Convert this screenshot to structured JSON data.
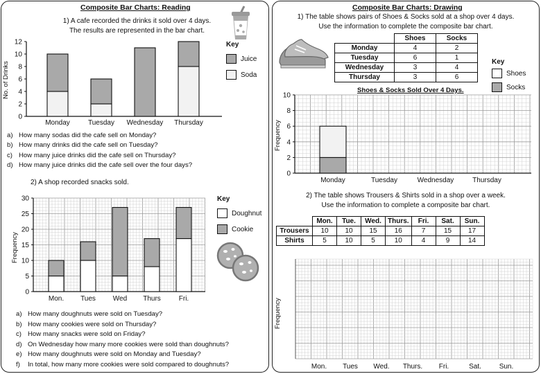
{
  "left": {
    "title": "Composite Bar Charts: Reading",
    "q1": {
      "intro_line1": "1)  A cafe recorded the drinks it sold over 4 days.",
      "intro_line2": "The results are represented in the bar chart.",
      "key_title": "Key",
      "key_items": [
        {
          "label": "Juice",
          "color": "#a9a9a9"
        },
        {
          "label": "Soda",
          "color": "#f2f2f2"
        }
      ],
      "questions": [
        {
          "letter": "a)",
          "text": "How many sodas did the cafe sell on Monday?"
        },
        {
          "letter": "b)",
          "text": "How many drinks did the cafe sell on Tuesday?"
        },
        {
          "letter": "c)",
          "text": "How many juice drinks did the cafe sell on Thursday?"
        },
        {
          "letter": "d)",
          "text": "How many juice drinks did the cafe sell over the four days?"
        }
      ]
    },
    "q2": {
      "intro": "2)  A shop recorded snacks sold.",
      "key_title": "Key",
      "key_items": [
        {
          "label": "Doughnut",
          "color": "#ffffff"
        },
        {
          "label": "Cookie",
          "color": "#a9a9a9"
        }
      ],
      "questions": [
        {
          "letter": "a)",
          "text": "How many doughnuts were sold on Tuesday?"
        },
        {
          "letter": "b)",
          "text": "How many cookies were sold on Thursday?"
        },
        {
          "letter": "c)",
          "text": "How many snacks were sold on Friday?"
        },
        {
          "letter": "d)",
          "text": "On Wednesday how many more cookies were sold than doughnuts?"
        },
        {
          "letter": "e)",
          "text": "How many doughnuts were sold on Monday and Tuesday?"
        },
        {
          "letter": "f)",
          "text": "In total, how many more cookies were sold compared to doughnuts?"
        }
      ]
    }
  },
  "right": {
    "title": "Composite Bar Charts: Drawing",
    "q1": {
      "intro_line1": "1) The table shows pairs of Shoes & Socks sold at a shop over 4 days.",
      "intro_line2": "Use the information to complete the composite bar chart.",
      "table": {
        "headers": [
          "",
          "Shoes",
          "Socks"
        ],
        "rows": [
          [
            "Monday",
            "4",
            "2"
          ],
          [
            "Tuesday",
            "6",
            "1"
          ],
          [
            "Wednesday",
            "3",
            "4"
          ],
          [
            "Thursday",
            "3",
            "6"
          ]
        ]
      },
      "key_title": "Key",
      "key_items": [
        {
          "label": "Shoes",
          "color": "#ffffff"
        },
        {
          "label": "Socks",
          "color": "#a9a9a9"
        }
      ]
    },
    "q2": {
      "intro_line1": "2) The table shows Trousers & Shirts sold in a shop over a week.",
      "intro_line2": "Use the information to complete a composite bar chart.",
      "table": {
        "headers": [
          "",
          "Mon.",
          "Tue.",
          "Wed.",
          "Thurs.",
          "Fri.",
          "Sat.",
          "Sun."
        ],
        "rows": [
          [
            "Trousers",
            "10",
            "10",
            "15",
            "16",
            "7",
            "15",
            "17"
          ],
          [
            "Shirts",
            "5",
            "10",
            "5",
            "10",
            "4",
            "9",
            "14"
          ]
        ]
      },
      "ylabel": "Frequency",
      "categories": [
        "Mon.",
        "Tues",
        "Wed.",
        "Thurs.",
        "Fri.",
        "Sat.",
        "Sun."
      ]
    }
  },
  "chart_data": [
    {
      "type": "bar",
      "stacked": true,
      "title": "",
      "xlabel": "",
      "ylabel": "No. of Drinks",
      "ylim": [
        0,
        12
      ],
      "yticks": [
        0,
        2,
        4,
        6,
        8,
        10,
        12
      ],
      "categories": [
        "Monday",
        "Tuesday",
        "Wednesday",
        "Thursday"
      ],
      "series": [
        {
          "name": "Soda",
          "color": "#f2f2f2",
          "values": [
            4,
            2,
            0,
            8
          ]
        },
        {
          "name": "Juice",
          "color": "#a9a9a9",
          "values": [
            6,
            4,
            11,
            4
          ]
        }
      ],
      "grid": false
    },
    {
      "type": "bar",
      "stacked": true,
      "title": "",
      "xlabel": "",
      "ylabel": "Frequency",
      "ylim": [
        0,
        30
      ],
      "yticks": [
        0,
        5,
        10,
        15,
        20,
        25,
        30
      ],
      "categories": [
        "Mon.",
        "Tues",
        "Wed",
        "Thurs",
        "Fri."
      ],
      "series": [
        {
          "name": "Doughnut",
          "color": "#ffffff",
          "values": [
            5,
            10,
            5,
            8,
            17
          ]
        },
        {
          "name": "Cookie",
          "color": "#a9a9a9",
          "values": [
            5,
            6,
            22,
            9,
            10
          ]
        }
      ],
      "grid": true
    },
    {
      "type": "bar",
      "stacked": true,
      "title": "Shoes & Socks Sold Over 4 Days.",
      "xlabel": "",
      "ylabel": "Frequency",
      "ylim": [
        0,
        10
      ],
      "yticks": [
        0,
        2,
        4,
        6,
        8,
        10
      ],
      "categories": [
        "Monday",
        "Tuesday",
        "Wednesday",
        "Thursday"
      ],
      "series": [
        {
          "name": "Socks",
          "color": "#a9a9a9",
          "values": [
            2,
            null,
            null,
            null
          ]
        },
        {
          "name": "Shoes",
          "color": "#f2f2f2",
          "values": [
            4,
            null,
            null,
            null
          ]
        }
      ],
      "grid": true
    }
  ]
}
